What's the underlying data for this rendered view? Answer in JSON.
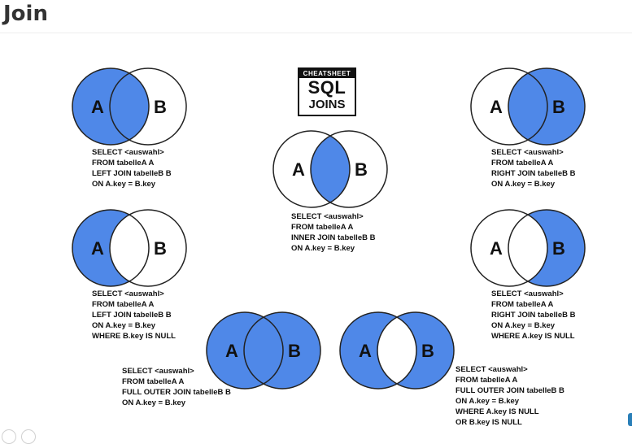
{
  "page": {
    "title": "Join"
  },
  "colors": {
    "fill": "#4f88e8",
    "stroke": "#222222",
    "background": "#ffffff"
  },
  "badge": {
    "top": "CHEATSHEET",
    "main": "SQL",
    "sub": "JOINS"
  },
  "diagrams": [
    {
      "id": "left-join",
      "fill": "a-all",
      "label_a": "A",
      "label_b": "B",
      "code": "SELECT <auswahl>\nFROM tabelleA A\nLEFT JOIN tabelleB B\nON A.key = B.key"
    },
    {
      "id": "right-join",
      "fill": "b-all",
      "label_a": "A",
      "label_b": "B",
      "code": "SELECT <auswahl>\nFROM tabelleA A\nRIGHT JOIN tabelleB B\nON A.key = B.key"
    },
    {
      "id": "inner-join",
      "fill": "intersection",
      "label_a": "A",
      "label_b": "B",
      "code": "SELECT <auswahl>\nFROM tabelleA A\nINNER JOIN tabelleB B\nON A.key = B.key"
    },
    {
      "id": "left-join-excluding",
      "fill": "a-only",
      "label_a": "A",
      "label_b": "B",
      "code": "SELECT <auswahl>\nFROM tabelleA A\nLEFT JOIN tabelleB B\nON A.key = B.key\nWHERE B.key IS NULL"
    },
    {
      "id": "right-join-excluding",
      "fill": "b-only",
      "label_a": "A",
      "label_b": "B",
      "code": "SELECT <auswahl>\nFROM tabelleA A\nRIGHT JOIN tabelleB B\nON A.key = B.key\nWHERE A.key IS NULL"
    },
    {
      "id": "full-outer-join",
      "fill": "union",
      "label_a": "A",
      "label_b": "B",
      "code": "SELECT <auswahl>\nFROM tabelleA A\nFULL OUTER JOIN tabelleB B\nON A.key = B.key"
    },
    {
      "id": "full-outer-join-excluding",
      "fill": "xor",
      "label_a": "A",
      "label_b": "B",
      "code": "SELECT <auswahl>\nFROM tabelleA A\nFULL OUTER JOIN tabelleB B\nON A.key = B.key\nWHERE A.key IS NULL\nOR B.key IS NULL"
    }
  ]
}
